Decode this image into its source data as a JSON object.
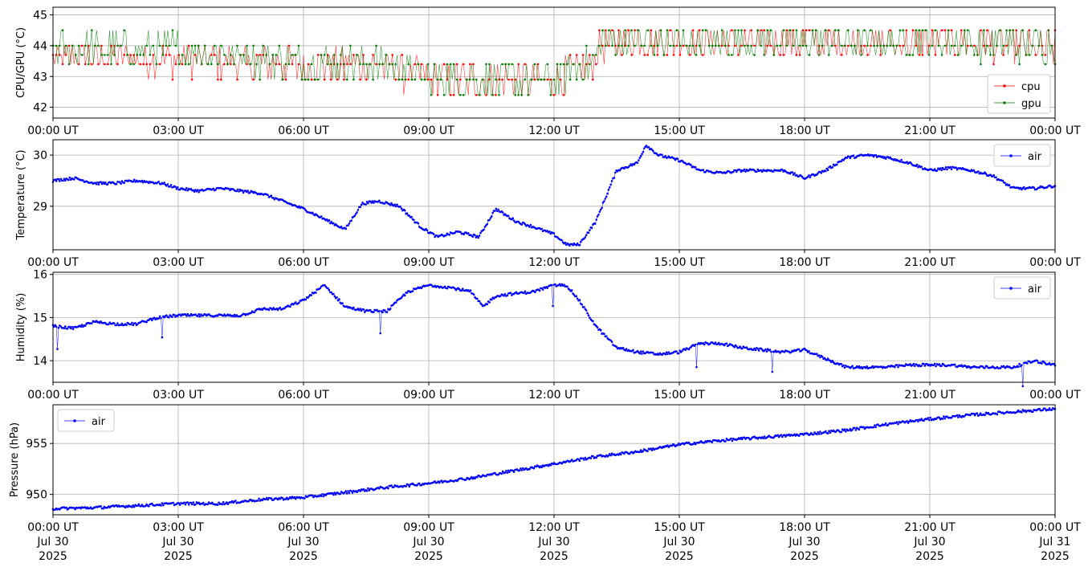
{
  "colors": {
    "cpu": "#ff0000",
    "gpu": "#008000",
    "air": "#0000ff",
    "grid": "#b0b0b0"
  },
  "x_ticks": [
    "00:00 UT",
    "03:00 UT",
    "06:00 UT",
    "09:00 UT",
    "12:00 UT",
    "15:00 UT",
    "18:00 UT",
    "21:00 UT",
    "00:00 UT"
  ],
  "x_tick_dates": [
    "Jul 30",
    "Jul 30",
    "Jul 30",
    "Jul 30",
    "Jul 30",
    "Jul 30",
    "Jul 30",
    "Jul 30",
    "Jul 31"
  ],
  "x_tick_years": [
    "2025",
    "2025",
    "2025",
    "2025",
    "2025",
    "2025",
    "2025",
    "2025",
    "2025"
  ],
  "chart_data": [
    {
      "type": "line",
      "ylabel": "CPU/GPU (°C)",
      "xlim": [
        "2025-07-30 00:00 UT",
        "2025-07-31 00:00 UT"
      ],
      "ylim": [
        41.65,
        45.25
      ],
      "yticks": [
        "42",
        "43",
        "44",
        "45"
      ],
      "grid": true,
      "legend": "bottom-right",
      "series": [
        {
          "name": "cpu",
          "x_hours": [
            0,
            2,
            4,
            5,
            6,
            7,
            8,
            9,
            10,
            11,
            12,
            12.9,
            13.1,
            14,
            16,
            18,
            20,
            22,
            24
          ],
          "values": [
            43.6,
            43.6,
            43.5,
            43.4,
            43.3,
            43.4,
            43.3,
            42.9,
            42.9,
            42.9,
            42.9,
            43.4,
            44.0,
            44.2,
            44.1,
            44.1,
            44.1,
            44.1,
            43.9
          ]
        },
        {
          "name": "gpu",
          "x_hours": [
            0,
            2,
            4,
            5,
            6,
            7,
            8,
            9,
            10,
            11,
            12,
            12.9,
            13.1,
            14,
            16,
            18,
            20,
            22,
            24
          ],
          "values": [
            43.9,
            43.9,
            43.8,
            43.6,
            43.5,
            43.5,
            43.4,
            42.9,
            42.9,
            42.9,
            42.9,
            43.4,
            44.1,
            44.2,
            44.1,
            44.2,
            44.2,
            44.1,
            44.0
          ]
        }
      ]
    },
    {
      "type": "line",
      "ylabel": "Temperature (°C)",
      "xlim": [
        "2025-07-30 00:00 UT",
        "2025-07-31 00:00 UT"
      ],
      "ylim": [
        28.15,
        30.3
      ],
      "yticks": [
        "29",
        "30"
      ],
      "grid": true,
      "legend": "top-right",
      "series": [
        {
          "name": "air",
          "x_hours": [
            0,
            0.5,
            1.0,
            1.5,
            2.0,
            2.6,
            3.0,
            3.5,
            4.0,
            4.5,
            5.0,
            5.5,
            6.0,
            6.5,
            7.0,
            7.4,
            7.8,
            8.3,
            8.8,
            9.2,
            9.7,
            10.2,
            10.6,
            11.1,
            11.5,
            12.0,
            12.3,
            12.6,
            13.0,
            13.5,
            14.0,
            14.2,
            14.5,
            15.0,
            15.5,
            16.0,
            16.5,
            17.0,
            17.5,
            18.0,
            18.5,
            19.0,
            19.5,
            20.0,
            20.5,
            21.0,
            21.5,
            22.0,
            22.5,
            23.0,
            23.5,
            24.0
          ],
          "values": [
            29.5,
            29.55,
            29.45,
            29.45,
            29.5,
            29.45,
            29.35,
            29.3,
            29.35,
            29.3,
            29.25,
            29.1,
            28.95,
            28.75,
            28.55,
            29.05,
            29.1,
            29.0,
            28.6,
            28.4,
            28.5,
            28.4,
            28.95,
            28.7,
            28.6,
            28.45,
            28.25,
            28.25,
            28.7,
            29.7,
            29.85,
            30.2,
            30.0,
            29.9,
            29.7,
            29.65,
            29.7,
            29.7,
            29.7,
            29.55,
            29.7,
            29.95,
            30.0,
            29.95,
            29.85,
            29.7,
            29.75,
            29.7,
            29.6,
            29.35,
            29.35,
            29.4
          ]
        }
      ]
    },
    {
      "type": "line",
      "ylabel": "Humidity (%)",
      "xlim": [
        "2025-07-30 00:00 UT",
        "2025-07-31 00:00 UT"
      ],
      "ylim": [
        13.5,
        16.05
      ],
      "yticks": [
        "14",
        "15",
        "16"
      ],
      "grid": true,
      "legend": "top-right",
      "series": [
        {
          "name": "air",
          "x_hours": [
            0,
            0.5,
            1.0,
            1.5,
            2.0,
            2.5,
            3.0,
            3.5,
            4.0,
            4.5,
            5.0,
            5.5,
            6.0,
            6.5,
            7.0,
            7.5,
            8.0,
            8.5,
            9.0,
            9.5,
            10.0,
            10.3,
            10.6,
            11.0,
            11.5,
            12.0,
            12.3,
            12.6,
            13.0,
            13.5,
            14.0,
            14.5,
            15.0,
            15.5,
            16.0,
            16.5,
            17.0,
            17.5,
            18.0,
            18.5,
            19.0,
            19.5,
            20.0,
            20.5,
            21.0,
            21.5,
            22.0,
            22.5,
            23.0,
            23.5,
            24.0
          ],
          "values": [
            14.8,
            14.75,
            14.9,
            14.85,
            14.85,
            15.0,
            15.05,
            15.05,
            15.05,
            15.05,
            15.2,
            15.2,
            15.4,
            15.75,
            15.25,
            15.15,
            15.15,
            15.6,
            15.75,
            15.7,
            15.6,
            15.25,
            15.5,
            15.55,
            15.6,
            15.75,
            15.75,
            15.4,
            14.8,
            14.3,
            14.2,
            14.15,
            14.2,
            14.4,
            14.4,
            14.3,
            14.25,
            14.2,
            14.25,
            14.05,
            13.85,
            13.85,
            13.85,
            13.9,
            13.9,
            13.9,
            13.85,
            13.85,
            13.85,
            14.0,
            13.9
          ]
        }
      ]
    },
    {
      "type": "line",
      "ylabel": "Pressure (hPa)",
      "xlim": [
        "2025-07-30 00:00 UT",
        "2025-07-31 00:00 UT"
      ],
      "ylim": [
        948.0,
        958.8
      ],
      "yticks": [
        "950",
        "955"
      ],
      "grid": true,
      "legend": "top-left",
      "series": [
        {
          "name": "air",
          "x_hours": [
            0,
            1,
            2,
            3,
            4,
            5,
            6,
            7,
            8,
            9,
            10,
            11,
            12,
            13,
            14,
            15,
            16,
            17,
            18,
            19,
            20,
            21,
            22,
            23,
            24
          ],
          "values": [
            948.6,
            948.7,
            948.9,
            949.1,
            949.1,
            949.5,
            949.7,
            950.2,
            950.7,
            951.1,
            951.6,
            952.3,
            953.0,
            953.7,
            954.2,
            954.9,
            955.3,
            955.6,
            955.9,
            956.3,
            956.9,
            957.4,
            957.8,
            958.1,
            958.4
          ]
        }
      ]
    }
  ]
}
